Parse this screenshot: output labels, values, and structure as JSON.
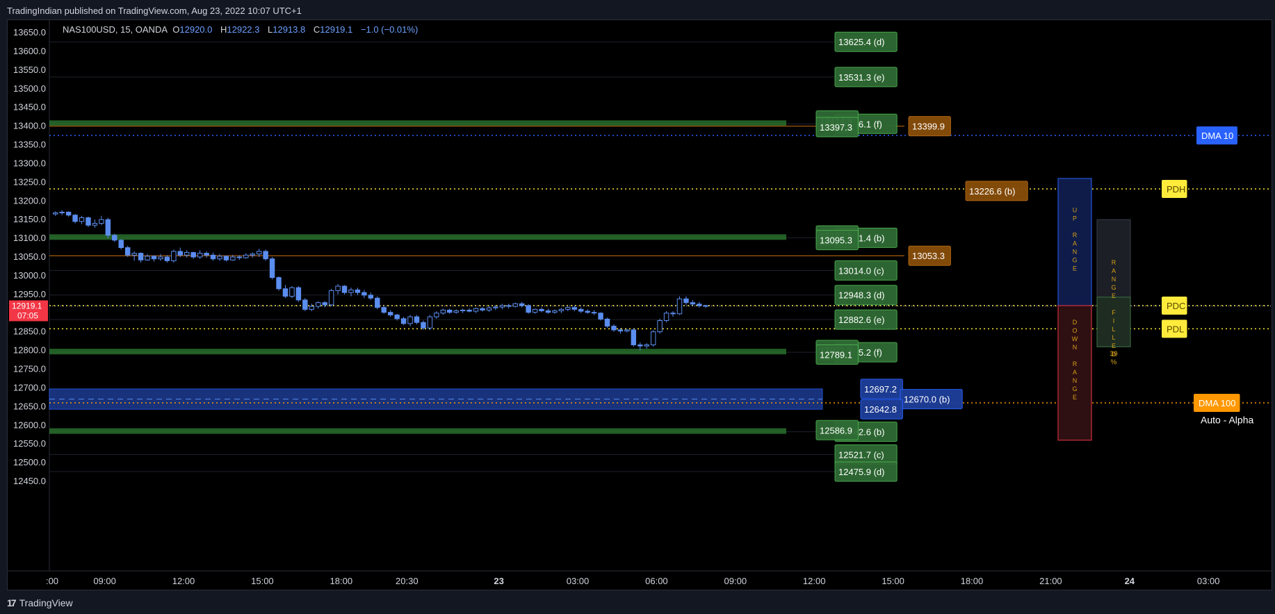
{
  "header": {
    "publisher": "TradingIndian published on TradingView.com, Aug 23, 2022 10:07 UTC+1"
  },
  "ohlc": {
    "symbol": "NAS100USD, 15, OANDA",
    "open_label": "O",
    "open": "12920.0",
    "high_label": "H",
    "high": "12922.3",
    "low_label": "L",
    "low": "12913.8",
    "close_label": "C",
    "close": "12919.1",
    "change": "−1.0 (−0.01%)"
  },
  "footer": {
    "logo_text": "TradingView",
    "logo_mark": "17"
  },
  "colors": {
    "background": "#000000",
    "candle": "#5b8def",
    "green_zone": "#2e7d32",
    "green_label": "#2f6b34",
    "orange": "#8a4e0a",
    "blue_zone": "#1e3f9a",
    "yellow": "#ffeb3b",
    "dma_blue": "#2962ff",
    "dma_orange": "#ff9800",
    "current_price": "#f23645"
  },
  "chart_data": {
    "type": "candlestick",
    "symbol": "NAS100USD",
    "timeframe": "15",
    "ylim": [
      12430,
      13670
    ],
    "y_ticks": [
      13650.0,
      13600.0,
      13550.0,
      13500.0,
      13450.0,
      13400.0,
      13350.0,
      13300.0,
      13250.0,
      13200.0,
      13150.0,
      13100.0,
      13050.0,
      13000.0,
      12950.0,
      12900.0,
      12850.0,
      12800.0,
      12750.0,
      12700.0,
      12650.0,
      12600.0,
      12550.0,
      12500.0,
      12450.0
    ],
    "x_ticks": [
      {
        "label": ":00",
        "bar": 0
      },
      {
        "label": "09:00",
        "bar": 8
      },
      {
        "label": "12:00",
        "bar": 20
      },
      {
        "label": "15:00",
        "bar": 32
      },
      {
        "label": "18:00",
        "bar": 44
      },
      {
        "label": "20:30",
        "bar": 54
      },
      {
        "label": "23",
        "bar": 68,
        "bold": true
      },
      {
        "label": "03:00",
        "bar": 80
      },
      {
        "label": "06:00",
        "bar": 92
      },
      {
        "label": "09:00",
        "bar": 104
      },
      {
        "label": "12:00",
        "bar": 116
      },
      {
        "label": "15:00",
        "bar": 128
      },
      {
        "label": "18:00",
        "bar": 140
      },
      {
        "label": "21:00",
        "bar": 152
      },
      {
        "label": "24",
        "bar": 164,
        "bold": true
      },
      {
        "label": "03:00",
        "bar": 176
      }
    ],
    "current_price": {
      "value": "12919.1",
      "countdown": "07:05",
      "price": 12919.1
    },
    "candles": [
      [
        13165,
        13172,
        13160,
        13168
      ],
      [
        13168,
        13175,
        13162,
        13170
      ],
      [
        13170,
        13172,
        13158,
        13162
      ],
      [
        13162,
        13165,
        13140,
        13145
      ],
      [
        13145,
        13160,
        13138,
        13155
      ],
      [
        13155,
        13158,
        13130,
        13135
      ],
      [
        13135,
        13150,
        13128,
        13140
      ],
      [
        13140,
        13160,
        13135,
        13150
      ],
      [
        13150,
        13155,
        13100,
        13108
      ],
      [
        13108,
        13112,
        13090,
        13095
      ],
      [
        13095,
        13098,
        13070,
        13075
      ],
      [
        13075,
        13080,
        13050,
        13055
      ],
      [
        13055,
        13065,
        13040,
        13060
      ],
      [
        13060,
        13062,
        13035,
        13042
      ],
      [
        13042,
        13058,
        13040,
        13052
      ],
      [
        13052,
        13055,
        13038,
        13045
      ],
      [
        13045,
        13058,
        13040,
        13050
      ],
      [
        13050,
        13055,
        13035,
        13040
      ],
      [
        13040,
        13070,
        13035,
        13065
      ],
      [
        13065,
        13075,
        13050,
        13055
      ],
      [
        13055,
        13068,
        13048,
        13062
      ],
      [
        13062,
        13064,
        13045,
        13050
      ],
      [
        13050,
        13068,
        13045,
        13060
      ],
      [
        13060,
        13065,
        13048,
        13055
      ],
      [
        13055,
        13062,
        13040,
        13045
      ],
      [
        13045,
        13058,
        13040,
        13052
      ],
      [
        13052,
        13054,
        13038,
        13042
      ],
      [
        13042,
        13056,
        13040,
        13050
      ],
      [
        13050,
        13055,
        13042,
        13048
      ],
      [
        13048,
        13060,
        13045,
        13055
      ],
      [
        13055,
        13062,
        13048,
        13058
      ],
      [
        13058,
        13072,
        13050,
        13065
      ],
      [
        13065,
        13070,
        13040,
        13045
      ],
      [
        13045,
        13050,
        12990,
        12995
      ],
      [
        12995,
        12998,
        12960,
        12965
      ],
      [
        12965,
        12975,
        12940,
        12945
      ],
      [
        12945,
        12972,
        12940,
        12968
      ],
      [
        12968,
        12972,
        12930,
        12935
      ],
      [
        12935,
        12940,
        12905,
        12910
      ],
      [
        12910,
        12925,
        12905,
        12918
      ],
      [
        12918,
        12932,
        12912,
        12928
      ],
      [
        12928,
        12932,
        12915,
        12922
      ],
      [
        12922,
        12965,
        12918,
        12960
      ],
      [
        12960,
        12978,
        12950,
        12972
      ],
      [
        12972,
        12975,
        12950,
        12955
      ],
      [
        12955,
        12968,
        12945,
        12962
      ],
      [
        12962,
        12968,
        12948,
        12955
      ],
      [
        12955,
        12962,
        12940,
        12948
      ],
      [
        12948,
        12955,
        12935,
        12940
      ],
      [
        12940,
        12945,
        12910,
        12915
      ],
      [
        12915,
        12920,
        12898,
        12902
      ],
      [
        12902,
        12908,
        12890,
        12895
      ],
      [
        12895,
        12898,
        12880,
        12885
      ],
      [
        12885,
        12890,
        12868,
        12872
      ],
      [
        12872,
        12895,
        12865,
        12890
      ],
      [
        12890,
        12895,
        12870,
        12875
      ],
      [
        12875,
        12880,
        12855,
        12860
      ],
      [
        12860,
        12895,
        12855,
        12890
      ],
      [
        12890,
        12905,
        12885,
        12900
      ],
      [
        12900,
        12912,
        12895,
        12908
      ],
      [
        12908,
        12912,
        12898,
        12902
      ],
      [
        12902,
        12910,
        12898,
        12906
      ],
      [
        12906,
        12912,
        12900,
        12908
      ],
      [
        12908,
        12912,
        12902,
        12905
      ],
      [
        12905,
        12915,
        12900,
        12912
      ],
      [
        12912,
        12916,
        12904,
        12908
      ],
      [
        12908,
        12918,
        12903,
        12914
      ],
      [
        12914,
        12920,
        12908,
        12916
      ],
      [
        12916,
        12925,
        12910,
        12920
      ],
      [
        12920,
        12925,
        12912,
        12918
      ],
      [
        12918,
        12928,
        12915,
        12925
      ],
      [
        12925,
        12930,
        12915,
        12920
      ],
      [
        12920,
        12924,
        12898,
        12902
      ],
      [
        12902,
        12912,
        12898,
        12910
      ],
      [
        12910,
        12915,
        12902,
        12906
      ],
      [
        12906,
        12912,
        12898,
        12902
      ],
      [
        12902,
        12910,
        12898,
        12906
      ],
      [
        12906,
        12914,
        12900,
        12910
      ],
      [
        12910,
        12918,
        12905,
        12915
      ],
      [
        12915,
        12920,
        12905,
        12910
      ],
      [
        12910,
        12915,
        12900,
        12905
      ],
      [
        12905,
        12910,
        12898,
        12902
      ],
      [
        12902,
        12908,
        12895,
        12900
      ],
      [
        12900,
        12902,
        12880,
        12884
      ],
      [
        12884,
        12888,
        12860,
        12865
      ],
      [
        12865,
        12870,
        12850,
        12855
      ],
      [
        12855,
        12860,
        12845,
        12852
      ],
      [
        12852,
        12858,
        12848,
        12855
      ],
      [
        12855,
        12860,
        12810,
        12815
      ],
      [
        12815,
        12822,
        12800,
        12812
      ],
      [
        12812,
        12820,
        12805,
        12815
      ],
      [
        12815,
        12855,
        12810,
        12850
      ],
      [
        12850,
        12885,
        12845,
        12880
      ],
      [
        12880,
        12905,
        12875,
        12900
      ],
      [
        12900,
        12905,
        12890,
        12898
      ],
      [
        12898,
        12945,
        12895,
        12938
      ],
      [
        12938,
        12945,
        12922,
        12928
      ],
      [
        12928,
        12935,
        12920,
        12924
      ],
      [
        12924,
        12930,
        12915,
        12920
      ],
      [
        12920,
        12922,
        12914,
        12919
      ]
    ],
    "horizontal_levels": [
      {
        "label": "13625.4 (d)",
        "value": 13625.4,
        "color": "green"
      },
      {
        "label": "13531.3 (e)",
        "value": 13531.3,
        "color": "green"
      },
      {
        "label": "13406.1 (f)",
        "value": 13406.1,
        "color": "green"
      },
      {
        "label": "13414.9",
        "value": 13414.9,
        "color": "green"
      },
      {
        "label": "13397.3",
        "value": 13397.3,
        "color": "green"
      },
      {
        "label": "13399.9",
        "value": 13399.9,
        "color": "orange"
      },
      {
        "label": "13226.6 (b)",
        "value": 13226.6,
        "color": "orange"
      },
      {
        "label": "13101.4 (b)",
        "value": 13101.4,
        "color": "green"
      },
      {
        "label": "13107.5",
        "value": 13107.5,
        "color": "green"
      },
      {
        "label": "13095.3",
        "value": 13095.3,
        "color": "green"
      },
      {
        "label": "13053.3",
        "value": 13053.3,
        "color": "orange"
      },
      {
        "label": "13014.0 (c)",
        "value": 13014.0,
        "color": "green"
      },
      {
        "label": "12948.3 (d)",
        "value": 12948.3,
        "color": "green"
      },
      {
        "label": "12882.6 (e)",
        "value": 12882.6,
        "color": "green"
      },
      {
        "label": "12795.2 (f)",
        "value": 12795.2,
        "color": "green"
      },
      {
        "label": "12801.3",
        "value": 12801.3,
        "color": "green"
      },
      {
        "label": "12789.1",
        "value": 12789.1,
        "color": "green"
      },
      {
        "label": "12697.2",
        "value": 12697.2,
        "color": "blue"
      },
      {
        "label": "12670.0 (b)",
        "value": 12670.0,
        "color": "blue"
      },
      {
        "label": "12642.8",
        "value": 12642.8,
        "color": "blue"
      },
      {
        "label": "12582.6 (b)",
        "value": 12582.6,
        "color": "green"
      },
      {
        "label": "12586.9",
        "value": 12586.9,
        "color": "green"
      },
      {
        "label": "12521.7 (c)",
        "value": 12521.7,
        "color": "green"
      },
      {
        "label": "12475.9 (d)",
        "value": 12475.9,
        "color": "green"
      }
    ],
    "dotted_lines": [
      {
        "label": "DMA 10",
        "value": 13375,
        "color": "blue"
      },
      {
        "label": "PDH",
        "value": 13232,
        "color": "yellow"
      },
      {
        "label": "PDC",
        "value": 12920,
        "color": "yellow"
      },
      {
        "label": "PDL",
        "value": 12858,
        "color": "yellow"
      },
      {
        "label": "DMA 100",
        "value": 12660,
        "color": "orange"
      }
    ],
    "range_boxes": {
      "up_label": "UP RANGE",
      "down_label": "DOWN RANGE",
      "filled_label": "RANGE FILLED",
      "filled_percent": "39 %",
      "fill_fraction": 0.39
    },
    "indicator_label": "Auto - Alpha"
  }
}
